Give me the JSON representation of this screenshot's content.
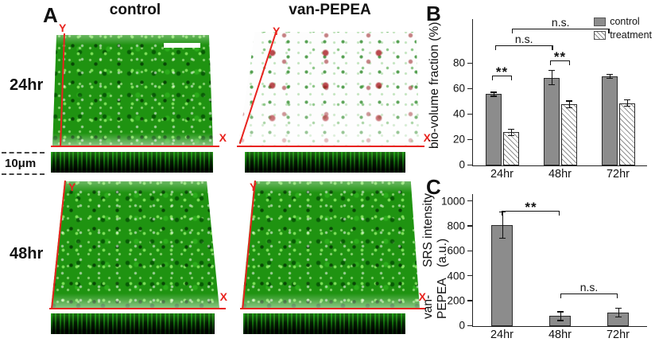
{
  "panel_a": {
    "label": "A",
    "col_headers": [
      "control",
      "van-PEPEA"
    ],
    "row_labels": [
      "24hr",
      "48hr"
    ],
    "depth_label": "10μm",
    "axis_x": "X",
    "axis_y": "Y"
  },
  "chart_data": [
    {
      "panel_label": "B",
      "type": "bar",
      "ylabel": "bio-volume fraction (%)",
      "categories": [
        "24hr",
        "48hr",
        "72hr"
      ],
      "series": [
        {
          "name": "control",
          "style": "solid",
          "values": [
            56,
            69,
            70
          ],
          "errors": [
            2,
            6,
            2
          ]
        },
        {
          "name": "treatment",
          "style": "hatched",
          "values": [
            26,
            48,
            49
          ],
          "errors": [
            3,
            3,
            3
          ]
        }
      ],
      "ymax": 115,
      "yticks": [
        0,
        20,
        40,
        60,
        80
      ],
      "legend_position": "top-right",
      "annotations": [
        {
          "label": "**",
          "x1": 0.33,
          "x2": 0.67,
          "y": 70
        },
        {
          "label": "**",
          "x1": 1.33,
          "x2": 1.67,
          "y": 82
        },
        {
          "label": "n.s.",
          "x1": 0.38,
          "x2": 1.38,
          "y": 94
        },
        {
          "label": "n.s.",
          "x1": 0.67,
          "x2": 2.35,
          "y": 107
        }
      ]
    },
    {
      "panel_label": "C",
      "type": "bar",
      "ylabel_lines": [
        "van-PEPEA",
        "SRS intensity (a.u.)"
      ],
      "categories": [
        "24hr",
        "48hr",
        "72hr"
      ],
      "series": [
        {
          "name": "van-PEPEA",
          "style": "solid",
          "values": [
            810,
            80,
            110
          ],
          "errors": [
            110,
            40,
            40
          ]
        }
      ],
      "ymax": 1060,
      "yticks": [
        0,
        200,
        400,
        600,
        800,
        1000
      ],
      "annotations": [
        {
          "label": "**",
          "x1": 0.5,
          "x2": 1.5,
          "y": 920
        },
        {
          "label": "n.s.",
          "x1": 1.5,
          "x2": 2.5,
          "y": 255
        }
      ]
    }
  ]
}
